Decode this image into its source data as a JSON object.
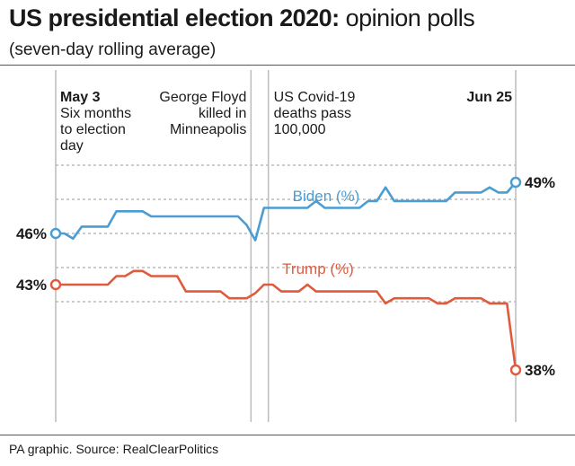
{
  "title_bold": "US presidential election 2020:",
  "title_light": " opinion polls",
  "subtitle": "(seven-day rolling average)",
  "source": "PA graphic. Source: RealClearPolitics",
  "colors": {
    "biden": "#4b9cd3",
    "trump": "#e05a3c",
    "grid": "#999999",
    "event_line": "#bbbbbb"
  },
  "annotations": [
    {
      "lines": [
        "May 3",
        "Six months",
        "to election",
        "day"
      ]
    },
    {
      "lines": [
        "George Floyd",
        "killed in",
        "Minneapolis"
      ]
    },
    {
      "lines": [
        "US Covid-19",
        "deaths pass",
        "100,000"
      ]
    },
    {
      "lines": [
        "Jun 25"
      ]
    }
  ],
  "chart_data": {
    "type": "line",
    "title": "US presidential election 2020: opinion polls",
    "subtitle": "(seven-day rolling average)",
    "x_start": "May 3",
    "x_end": "Jun 25",
    "x": [
      0,
      1,
      2,
      3,
      4,
      5,
      6,
      7,
      8,
      9,
      10,
      11,
      12,
      13,
      14,
      15,
      16,
      17,
      18,
      19,
      20,
      21,
      22,
      23,
      24,
      25,
      26,
      27,
      28,
      29,
      30,
      31,
      32,
      33,
      34,
      35,
      36,
      37,
      38,
      39,
      40,
      41,
      42,
      43,
      44,
      45,
      46,
      47,
      48,
      49,
      50,
      51,
      52,
      53
    ],
    "ylim": [
      37,
      51
    ],
    "grid_y": [
      50,
      48,
      46,
      44,
      42
    ],
    "events": [
      {
        "x": 0,
        "label": "May 3"
      },
      {
        "x": 22.5,
        "label": "George Floyd killed in Minneapolis"
      },
      {
        "x": 24.5,
        "label": "US Covid-19 deaths pass 100,000"
      },
      {
        "x": 53,
        "label": "Jun 25"
      }
    ],
    "series": [
      {
        "name": "Biden (%)",
        "start_label": "46%",
        "end_label": "49%",
        "values": [
          46,
          46,
          45.7,
          46.4,
          46.4,
          46.4,
          46.4,
          47.3,
          47.3,
          47.3,
          47.3,
          47.0,
          47.0,
          47.0,
          47.0,
          47.0,
          47.0,
          47.0,
          47.0,
          47.0,
          47.0,
          47.0,
          46.5,
          45.6,
          47.5,
          47.5,
          47.5,
          47.5,
          47.5,
          47.5,
          47.9,
          47.5,
          47.5,
          47.5,
          47.5,
          47.5,
          47.9,
          47.9,
          48.7,
          47.9,
          47.9,
          47.9,
          47.9,
          47.9,
          47.9,
          47.9,
          48.4,
          48.4,
          48.4,
          48.4,
          48.7,
          48.4,
          48.4,
          49
        ]
      },
      {
        "name": "Trump (%)",
        "start_label": "43%",
        "end_label": "38%",
        "values": [
          43,
          43,
          43,
          43,
          43,
          43,
          43,
          43.5,
          43.5,
          43.8,
          43.8,
          43.5,
          43.5,
          43.5,
          43.5,
          42.6,
          42.6,
          42.6,
          42.6,
          42.6,
          42.2,
          42.2,
          42.2,
          42.5,
          43,
          43,
          42.6,
          42.6,
          42.6,
          43,
          42.6,
          42.6,
          42.6,
          42.6,
          42.6,
          42.6,
          42.6,
          42.6,
          41.9,
          42.2,
          42.2,
          42.2,
          42.2,
          42.2,
          41.9,
          41.9,
          42.2,
          42.2,
          42.2,
          42.2,
          41.9,
          41.9,
          41.9,
          38
        ]
      }
    ]
  }
}
